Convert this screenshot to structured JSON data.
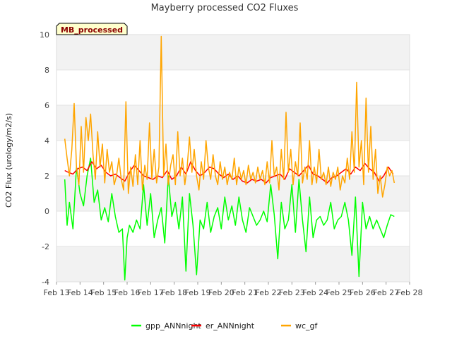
{
  "chart_data": {
    "type": "line",
    "title": "Mayberry processed CO2 Fluxes",
    "ylabel": "CO2 Flux (urology/m2/s)",
    "xlabel": "",
    "tag_label": "MB_processed",
    "xlim": [
      13,
      28
    ],
    "ylim": [
      -4,
      10
    ],
    "x_ticks": [
      13,
      14,
      15,
      16,
      17,
      18,
      19,
      20,
      21,
      22,
      23,
      24,
      25,
      26,
      27,
      28
    ],
    "x_tick_labels": [
      "Feb 13",
      "Feb 14",
      "Feb 15",
      "Feb 16",
      "Feb 17",
      "Feb 18",
      "Feb 19",
      "Feb 20",
      "Feb 21",
      "Feb 22",
      "Feb 23",
      "Feb 24",
      "Feb 25",
      "Feb 26",
      "Feb 27",
      "Feb 28"
    ],
    "y_ticks": [
      -4,
      -2,
      0,
      2,
      4,
      6,
      8,
      10
    ],
    "y_tick_labels": [
      "-4",
      "-2",
      "0",
      "2",
      "4",
      "6",
      "8",
      "10"
    ],
    "grid": true,
    "banded_background": true,
    "legend_position": "bottom",
    "series": [
      {
        "name": "gpp_ANNnight",
        "color": "#00ff00",
        "x": [
          13.35,
          13.45,
          13.55,
          13.7,
          13.85,
          14.0,
          14.15,
          14.3,
          14.45,
          14.6,
          14.75,
          14.9,
          15.05,
          15.2,
          15.35,
          15.5,
          15.65,
          15.8,
          15.9,
          16.0,
          16.1,
          16.25,
          16.4,
          16.55,
          16.7,
          16.85,
          17.0,
          17.15,
          17.3,
          17.45,
          17.6,
          17.75,
          17.9,
          18.05,
          18.2,
          18.35,
          18.5,
          18.65,
          18.8,
          18.95,
          19.1,
          19.25,
          19.4,
          19.55,
          19.7,
          19.85,
          20.0,
          20.15,
          20.3,
          20.45,
          20.6,
          20.75,
          20.9,
          21.05,
          21.2,
          21.35,
          21.5,
          21.65,
          21.8,
          21.95,
          22.1,
          22.25,
          22.4,
          22.55,
          22.7,
          22.85,
          23.0,
          23.15,
          23.3,
          23.45,
          23.6,
          23.75,
          23.9,
          24.05,
          24.2,
          24.35,
          24.5,
          24.65,
          24.8,
          24.95,
          25.1,
          25.25,
          25.4,
          25.55,
          25.7,
          25.85,
          26.0,
          26.15,
          26.3,
          26.45,
          26.6,
          26.75,
          26.9,
          27.05,
          27.2,
          27.35
        ],
        "y": [
          1.8,
          -0.8,
          0.5,
          -1.0,
          2.5,
          1.0,
          0.3,
          2.0,
          3.0,
          0.5,
          1.2,
          -0.5,
          0.2,
          -0.6,
          1.0,
          -0.3,
          -1.2,
          -1.0,
          -3.9,
          -1.5,
          -0.8,
          -1.2,
          -0.5,
          -1.0,
          1.5,
          -0.8,
          1.0,
          -1.5,
          -0.5,
          0.2,
          -1.8,
          2.0,
          -0.3,
          0.5,
          -1.0,
          0.8,
          -3.4,
          1.0,
          -0.8,
          -3.6,
          -0.5,
          -1.0,
          0.5,
          -1.2,
          -0.3,
          0.2,
          -1.0,
          0.8,
          -0.5,
          0.3,
          -0.8,
          0.8,
          -0.5,
          -1.2,
          0.2,
          -0.3,
          -0.8,
          -0.5,
          0.0,
          -0.6,
          1.5,
          -0.2,
          -2.7,
          0.5,
          -1.0,
          -0.5,
          1.5,
          -1.2,
          1.8,
          -0.5,
          -2.3,
          0.8,
          -1.5,
          -0.5,
          -0.3,
          -0.8,
          -0.5,
          0.5,
          -1.0,
          -0.5,
          -0.3,
          0.5,
          -0.5,
          -2.5,
          0.8,
          -3.7,
          0.5,
          -1.0,
          -0.3,
          -1.0,
          -0.5,
          -1.0,
          -1.5,
          -0.8,
          -0.2,
          -0.3
        ]
      },
      {
        "name": "er_ANNnight",
        "color": "#ff0000",
        "x": [
          13.35,
          13.5,
          13.7,
          13.9,
          14.1,
          14.3,
          14.5,
          14.7,
          14.9,
          15.1,
          15.3,
          15.5,
          15.7,
          15.9,
          16.1,
          16.3,
          16.5,
          16.7,
          16.9,
          17.1,
          17.3,
          17.5,
          17.7,
          17.9,
          18.1,
          18.3,
          18.5,
          18.7,
          18.9,
          19.1,
          19.3,
          19.5,
          19.7,
          19.9,
          20.1,
          20.3,
          20.5,
          20.7,
          20.9,
          21.1,
          21.3,
          21.5,
          21.7,
          21.9,
          22.1,
          22.3,
          22.5,
          22.7,
          22.9,
          23.1,
          23.3,
          23.5,
          23.7,
          23.9,
          24.1,
          24.3,
          24.5,
          24.7,
          24.9,
          25.1,
          25.3,
          25.5,
          25.7,
          25.9,
          26.1,
          26.3,
          26.5,
          26.7,
          26.9,
          27.1,
          27.3
        ],
        "y": [
          2.3,
          2.2,
          2.1,
          2.4,
          2.5,
          2.3,
          2.8,
          2.4,
          2.6,
          2.2,
          2.0,
          2.1,
          1.9,
          1.7,
          2.2,
          2.6,
          2.3,
          2.0,
          1.9,
          1.8,
          2.0,
          1.9,
          2.3,
          1.8,
          2.0,
          2.5,
          2.1,
          2.8,
          2.3,
          2.0,
          2.2,
          2.5,
          2.4,
          2.1,
          1.9,
          2.1,
          1.8,
          2.0,
          1.7,
          1.6,
          1.8,
          1.7,
          1.8,
          1.6,
          1.9,
          2.0,
          2.1,
          1.8,
          2.4,
          2.2,
          2.0,
          2.3,
          2.6,
          2.1,
          2.0,
          1.8,
          1.6,
          1.9,
          2.0,
          2.2,
          2.4,
          2.1,
          2.5,
          2.3,
          2.7,
          2.4,
          2.2,
          1.7,
          2.0,
          2.5,
          2.1
        ]
      },
      {
        "name": "wc_gf",
        "color": "#ffa500",
        "x": [
          13.35,
          13.45,
          13.55,
          13.65,
          13.75,
          13.85,
          13.95,
          14.05,
          14.15,
          14.25,
          14.35,
          14.45,
          14.55,
          14.65,
          14.75,
          14.85,
          14.95,
          15.05,
          15.15,
          15.25,
          15.35,
          15.45,
          15.55,
          15.65,
          15.75,
          15.85,
          15.95,
          16.05,
          16.15,
          16.25,
          16.35,
          16.45,
          16.55,
          16.65,
          16.75,
          16.85,
          16.95,
          17.05,
          17.15,
          17.25,
          17.35,
          17.45,
          17.55,
          17.65,
          17.75,
          17.85,
          17.95,
          18.05,
          18.15,
          18.25,
          18.35,
          18.45,
          18.55,
          18.65,
          18.75,
          18.85,
          18.95,
          19.05,
          19.15,
          19.25,
          19.35,
          19.45,
          19.55,
          19.65,
          19.75,
          19.85,
          19.95,
          20.05,
          20.15,
          20.25,
          20.35,
          20.45,
          20.55,
          20.65,
          20.75,
          20.85,
          20.95,
          21.05,
          21.15,
          21.25,
          21.35,
          21.45,
          21.55,
          21.65,
          21.75,
          21.85,
          21.95,
          22.05,
          22.15,
          22.25,
          22.35,
          22.45,
          22.55,
          22.65,
          22.75,
          22.85,
          22.95,
          23.05,
          23.15,
          23.25,
          23.35,
          23.45,
          23.55,
          23.65,
          23.75,
          23.85,
          23.95,
          24.05,
          24.15,
          24.25,
          24.35,
          24.45,
          24.55,
          24.65,
          24.75,
          24.85,
          24.95,
          25.05,
          25.15,
          25.25,
          25.35,
          25.45,
          25.55,
          25.65,
          25.75,
          25.85,
          25.95,
          26.05,
          26.15,
          26.25,
          26.35,
          26.45,
          26.55,
          26.65,
          26.75,
          26.85,
          26.95,
          27.05,
          27.15,
          27.25,
          27.35
        ],
        "y": [
          4.1,
          3.0,
          2.0,
          3.5,
          6.1,
          2.5,
          1.5,
          4.8,
          2.2,
          5.3,
          4.0,
          5.5,
          3.2,
          1.8,
          4.5,
          2.5,
          3.8,
          1.6,
          3.5,
          2.2,
          2.8,
          1.5,
          2.0,
          3.0,
          1.8,
          1.2,
          6.2,
          1.0,
          2.5,
          1.4,
          3.2,
          1.5,
          4.0,
          1.2,
          2.6,
          1.8,
          5.0,
          1.8,
          3.5,
          1.6,
          2.5,
          9.9,
          2.0,
          3.8,
          1.5,
          2.6,
          3.2,
          1.5,
          4.5,
          2.0,
          3.0,
          1.5,
          2.5,
          4.2,
          2.2,
          3.5,
          2.0,
          1.2,
          2.8,
          1.8,
          4.0,
          2.5,
          1.8,
          3.2,
          2.0,
          1.5,
          2.8,
          1.8,
          2.5,
          1.5,
          2.2,
          1.8,
          3.0,
          1.5,
          2.5,
          1.8,
          2.3,
          1.5,
          2.6,
          1.8,
          2.2,
          1.6,
          2.5,
          1.8,
          2.3,
          1.5,
          2.8,
          1.6,
          4.0,
          2.0,
          2.5,
          1.2,
          3.5,
          1.8,
          5.6,
          2.2,
          3.5,
          1.5,
          2.8,
          2.0,
          5.0,
          1.6,
          2.5,
          1.8,
          4.0,
          1.5,
          2.5,
          1.6,
          3.5,
          1.8,
          2.2,
          1.5,
          2.5,
          1.4,
          2.2,
          1.8,
          2.5,
          1.2,
          2.0,
          1.6,
          3.0,
          1.8,
          4.5,
          2.2,
          7.3,
          2.5,
          4.0,
          1.5,
          6.4,
          2.2,
          4.8,
          1.8,
          3.5,
          1.0,
          2.0,
          0.8,
          1.5,
          2.5,
          2.0,
          2.3,
          1.6
        ]
      }
    ]
  }
}
